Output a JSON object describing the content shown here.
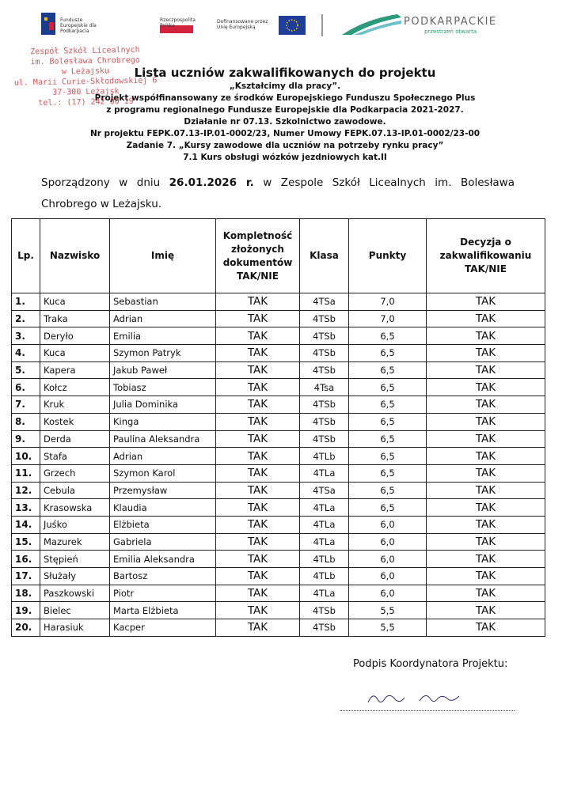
{
  "logos": {
    "fe": "Fundusze Europejskie dla Podkarpacia",
    "rp": "Rzeczpospolita Polska",
    "ue": "Dofinansowane przez Unię Europejską",
    "region": "PODKARPACKIE",
    "region_tagline": "przestrzeń otwarta"
  },
  "stamp": [
    "Zespół Szkół Licealnych",
    "im. Bolesława Chrobrego",
    "w Leżajsku",
    "ul. Marii Curie-Skłodowskiej 6",
    "37-300 Leżajsk",
    "tel.: (17) 242 00 19"
  ],
  "title_block": [
    "Lista uczniów zakwalifikowanych do projektu",
    "„Kształcimy dla pracy”.",
    "Projekt współfinansowany ze środków Europejskiego Funduszu Społecznego Plus",
    "z programu regionalnego Fundusze Europejskie dla Podkarpacia 2021-2027.",
    "Działanie nr 07.13. Szkolnictwo zawodowe.",
    "Nr projektu  FEPK.07.13-IP.01-0002/23, Numer Umowy FEPK.07.13-IP.01-0002/23-00",
    "Zadanie 7. „Kursy zawodowe dla uczniów na potrzeby rynku pracy”",
    "7.1 Kurs obsługi wózków jezdniowych kat.II"
  ],
  "intro": {
    "before": "Sporządzony w dniu",
    "date": "26.01.2026 r.",
    "after": "w Zespole Szkół Licealnych im. Bolesława Chrobrego w Leżajsku."
  },
  "table": {
    "headers": [
      "Lp.",
      "Nazwisko",
      "Imię",
      "Kompletność złożonych dokumentów TAK/NIE",
      "Klasa",
      "Punkty",
      "Decyzja o zakwalifikowaniu TAK/NIE"
    ],
    "rows": [
      [
        "1.",
        "Kuca",
        "Sebastian",
        "TAK",
        "4TSa",
        "7,0",
        "TAK"
      ],
      [
        "2.",
        "Traka",
        "Adrian",
        "TAK",
        "4TSb",
        "7,0",
        "TAK"
      ],
      [
        "3.",
        "Deryło",
        "Emilia",
        "TAK",
        "4TSb",
        "6,5",
        "TAK"
      ],
      [
        "4.",
        "Kuca",
        "Szymon Patryk",
        "TAK",
        "4TSb",
        "6,5",
        "TAK"
      ],
      [
        "5.",
        "Kapera",
        "Jakub Paweł",
        "TAK",
        "4TSb",
        "6,5",
        "TAK"
      ],
      [
        "6.",
        "Kołcz",
        "Tobiasz",
        "TAK",
        "4Tsa",
        "6,5",
        "TAK"
      ],
      [
        "7.",
        "Kruk",
        "Julia Dominika",
        "TAK",
        "4TSb",
        "6,5",
        "TAK"
      ],
      [
        "8.",
        "Kostek",
        "Kinga",
        "TAK",
        "4TSb",
        "6,5",
        "TAK"
      ],
      [
        "9.",
        "Derda",
        "Paulina Aleksandra",
        "TAK",
        "4TSb",
        "6,5",
        "TAK"
      ],
      [
        "10.",
        "Stafa",
        "Adrian",
        "TAK",
        "4TLb",
        "6,5",
        "TAK"
      ],
      [
        "11.",
        "Grzech",
        "Szymon Karol",
        "TAK",
        "4TLa",
        "6,5",
        "TAK"
      ],
      [
        "12.",
        "Cebula",
        "Przemysław",
        "TAK",
        "4TSa",
        "6,5",
        "TAK"
      ],
      [
        "13.",
        "Krasowska",
        "Klaudia",
        "TAK",
        "4TLa",
        "6,5",
        "TAK"
      ],
      [
        "14.",
        "Juśko",
        "Elżbieta",
        "TAK",
        "4TLa",
        "6,0",
        "TAK"
      ],
      [
        "15.",
        "Mazurek",
        "Gabriela",
        "TAK",
        "4TLa",
        "6,0",
        "TAK"
      ],
      [
        "16.",
        "Stępień",
        "Emilia Aleksandra",
        "TAK",
        "4TLb",
        "6,0",
        "TAK"
      ],
      [
        "17.",
        "Służały",
        "Bartosz",
        "TAK",
        "4TLb",
        "6,0",
        "TAK"
      ],
      [
        "18.",
        "Paszkowski",
        "Piotr",
        "TAK",
        "4TLa",
        "6,0",
        "TAK"
      ],
      [
        "19.",
        "Bielec",
        "Marta Elżbieta",
        "TAK",
        "4TSb",
        "5,5",
        "TAK"
      ],
      [
        "20.",
        "Harasiuk",
        "Kacper",
        "TAK",
        "4TSb",
        "5,5",
        "TAK"
      ]
    ]
  },
  "signature_label": "Podpis Koordynatora Projektu:"
}
